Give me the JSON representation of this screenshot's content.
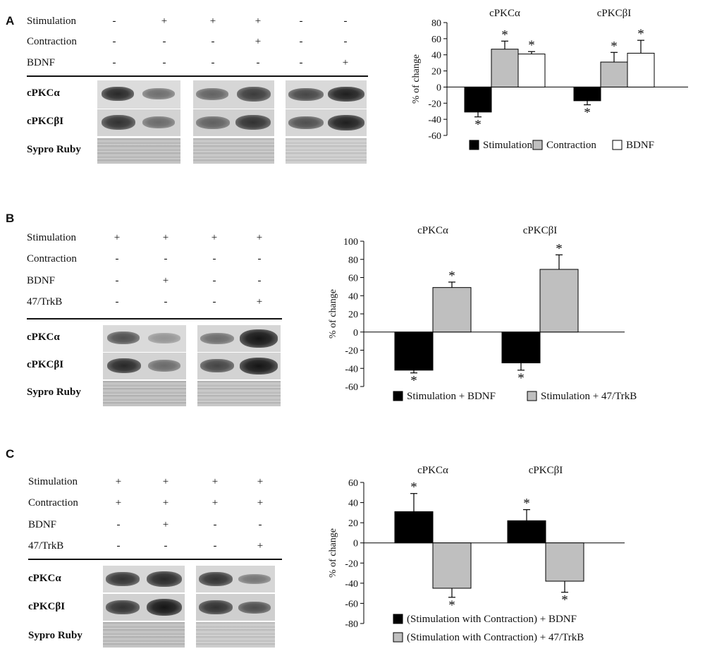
{
  "panels": [
    {
      "letter": "A",
      "conditions": [
        {
          "label": "Stimulation",
          "signs": [
            "-",
            "+",
            "+",
            "+",
            "-",
            "-"
          ]
        },
        {
          "label": "Contraction",
          "signs": [
            "-",
            "-",
            "-",
            "+",
            "-",
            "-"
          ]
        },
        {
          "label": "BDNF",
          "signs": [
            "-",
            "-",
            "-",
            "-",
            "-",
            "+"
          ]
        }
      ],
      "blot_labels": [
        "cPKCα",
        "cPKCβI",
        "Sypro Ruby"
      ],
      "band_intensity": {
        "cPKCα": [
          0.9,
          0.55,
          0.6,
          0.8,
          0.75,
          0.95
        ],
        "cPKCβI": [
          0.85,
          0.55,
          0.6,
          0.85,
          0.7,
          0.95
        ]
      }
    },
    {
      "letter": "B",
      "conditions": [
        {
          "label": "Stimulation",
          "signs": [
            "+",
            "+",
            "+",
            "+"
          ]
        },
        {
          "label": "Contraction",
          "signs": [
            "-",
            "-",
            "-",
            "-"
          ]
        },
        {
          "label": "BDNF",
          "signs": [
            "-",
            "+",
            "-",
            "-"
          ]
        },
        {
          "label": "47/TrkB",
          "signs": [
            "-",
            "-",
            "-",
            "+"
          ]
        }
      ],
      "blot_labels": [
        "cPKCα",
        "cPKCβI",
        "Sypro Ruby"
      ],
      "band_intensity": {
        "cPKCα": [
          0.7,
          0.35,
          0.55,
          1.0
        ],
        "cPKCβI": [
          0.9,
          0.55,
          0.75,
          1.0
        ]
      }
    },
    {
      "letter": "C",
      "conditions": [
        {
          "label": "Stimulation",
          "signs": [
            "+",
            "+",
            "+",
            "+"
          ]
        },
        {
          "label": "Contraction",
          "signs": [
            "+",
            "+",
            "+",
            "+"
          ]
        },
        {
          "label": "BDNF",
          "signs": [
            "-",
            "+",
            "-",
            "-"
          ]
        },
        {
          "label": "47/TrkB",
          "signs": [
            "-",
            "-",
            "-",
            "+"
          ]
        }
      ],
      "blot_labels": [
        "cPKCα",
        "cPKCβI",
        "Sypro Ruby"
      ],
      "band_intensity": {
        "cPKCα": [
          0.85,
          0.9,
          0.85,
          0.5
        ],
        "cPKCβI": [
          0.85,
          1.0,
          0.85,
          0.7
        ]
      }
    }
  ],
  "chart_data": [
    {
      "type": "bar",
      "categories": [
        "cPKCα",
        "cPKCβI"
      ],
      "ylabel": "% of change",
      "ylim": [
        -60,
        80
      ],
      "yticks": [
        -60,
        -40,
        -20,
        0,
        20,
        40,
        60,
        80
      ],
      "grid": false,
      "legend_position": "bottom",
      "series": [
        {
          "name": "Stimulation",
          "color": "#000000",
          "values": [
            -31,
            -17
          ],
          "errors": [
            6,
            5
          ],
          "significant": [
            true,
            true
          ]
        },
        {
          "name": "Contraction",
          "color": "#bfbfbf",
          "values": [
            47,
            31
          ],
          "errors": [
            10,
            12
          ],
          "significant": [
            true,
            true
          ]
        },
        {
          "name": "BDNF",
          "color": "#ffffff",
          "values": [
            41,
            42
          ],
          "errors": [
            3,
            16
          ],
          "significant": [
            true,
            true
          ]
        }
      ],
      "significance_marker": "*"
    },
    {
      "type": "bar",
      "categories": [
        "cPKCα",
        "cPKCβI"
      ],
      "ylabel": "% of change",
      "ylim": [
        -60,
        100
      ],
      "yticks": [
        -60,
        -40,
        -20,
        0,
        20,
        40,
        60,
        80,
        100
      ],
      "grid": false,
      "legend_position": "bottom",
      "series": [
        {
          "name": "Stimulation + BDNF",
          "color": "#000000",
          "values": [
            -42,
            -34
          ],
          "errors": [
            3,
            8
          ],
          "significant": [
            true,
            true
          ]
        },
        {
          "name": "Stimulation + 47/TrkB",
          "color": "#bfbfbf",
          "values": [
            49,
            69
          ],
          "errors": [
            6,
            16
          ],
          "significant": [
            true,
            true
          ]
        }
      ],
      "significance_marker": "*"
    },
    {
      "type": "bar",
      "categories": [
        "cPKCα",
        "cPKCβI"
      ],
      "ylabel": "% of change",
      "ylim": [
        -80,
        60
      ],
      "yticks": [
        -80,
        -60,
        -40,
        -20,
        0,
        20,
        40,
        60
      ],
      "grid": false,
      "legend_position": "bottom",
      "series": [
        {
          "name": "(Stimulation with Contraction) + BDNF",
          "color": "#000000",
          "values": [
            31,
            22
          ],
          "errors": [
            18,
            11
          ],
          "significant": [
            true,
            true
          ]
        },
        {
          "name": "(Stimulation with Contraction) + 47/TrkB",
          "color": "#bfbfbf",
          "values": [
            -45,
            -38
          ],
          "errors": [
            9,
            11
          ],
          "significant": [
            true,
            true
          ]
        }
      ],
      "significance_marker": "*"
    }
  ]
}
